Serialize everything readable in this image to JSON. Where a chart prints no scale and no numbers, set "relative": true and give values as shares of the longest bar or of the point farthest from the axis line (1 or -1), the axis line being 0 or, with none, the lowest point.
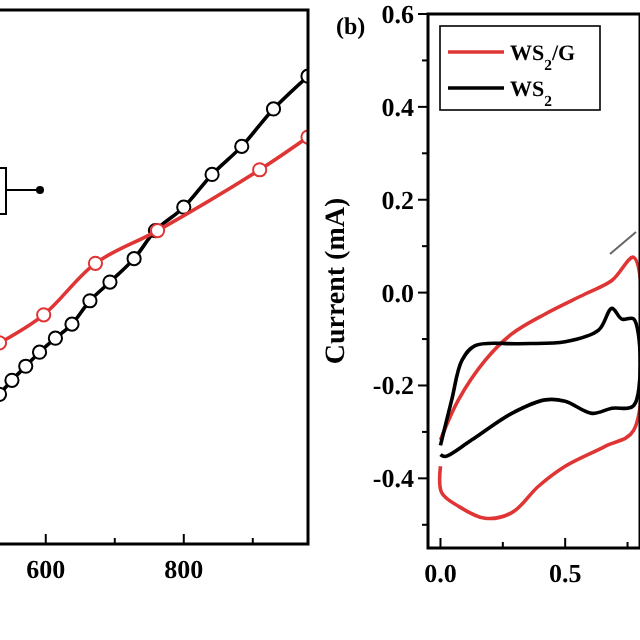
{
  "chart_data": [
    {
      "type": "line",
      "relative": true,
      "marker": "circle",
      "xlim": [
        525,
        980
      ],
      "xticks": [
        600,
        {
          "value": 700,
          "label": null
        },
        800,
        {
          "value": 900,
          "label": null
        }
      ],
      "series": [
        {
          "color": "#000000",
          "x": [
            533,
            551,
            571,
            591,
            614,
            638,
            664,
            693,
            728,
            759,
            800,
            841,
            884,
            930,
            980
          ],
          "values": [
            0.32,
            0.35,
            0.38,
            0.41,
            0.44,
            0.47,
            0.52,
            0.56,
            0.61,
            0.67,
            0.72,
            0.79,
            0.85,
            0.93,
            1
          ]
        },
        {
          "color": "#e03535",
          "x": [
            533,
            597,
            672,
            762,
            910,
            980
          ],
          "values": [
            0.43,
            0.49,
            0.6,
            0.67,
            0.8,
            0.87
          ]
        }
      ]
    },
    {
      "type": "line",
      "title": "(b)",
      "ylabel": "Current (mA)",
      "xlim": [
        -0.05,
        0.8
      ],
      "ylim": [
        -0.55,
        0.6
      ],
      "legend": "top left",
      "xticks": [
        {
          "value": 0,
          "label": "0.0"
        },
        {
          "value": 0.25,
          "label": null
        },
        0.5,
        {
          "value": 0.75,
          "label": null
        }
      ],
      "yticks": [
        -0.4,
        {
          "value": -0.5,
          "label": null
        },
        {
          "value": -0.3,
          "label": null
        },
        -0.2,
        {
          "value": -0.1,
          "label": null
        },
        {
          "value": 0,
          "label": "0.0"
        },
        {
          "value": 0.1,
          "label": null
        },
        0.2,
        {
          "value": 0.3,
          "label": null
        },
        0.4,
        {
          "value": 0.5,
          "label": null
        },
        0.6
      ],
      "series": [
        {
          "name": "WS$_{2}$/G",
          "color": "#e03535",
          "x": [
            0,
            0.072,
            0.179,
            0.286,
            0.42,
            0.58,
            0.687,
            0.775,
            0.775,
            0.66,
            0.5,
            0.393,
            0.286,
            0.179,
            0.072,
            0.005,
            0
          ],
          "values": [
            -0.317,
            -0.231,
            -0.146,
            -0.089,
            -0.046,
            -0.003,
            0.026,
            0.076,
            -0.296,
            -0.331,
            -0.374,
            -0.417,
            -0.474,
            -0.486,
            -0.46,
            -0.431,
            -0.374
          ]
        },
        {
          "name": "WS$_{2}$",
          "color": "#000000",
          "x": [
            0,
            0.045,
            0.086,
            0.139,
            0.313,
            0.5,
            0.634,
            0.687,
            0.727,
            0.775,
            0.775,
            0.687,
            0.607,
            0.5,
            0.42,
            0.286,
            0.126,
            0.019,
            0
          ],
          "values": [
            -0.329,
            -0.231,
            -0.146,
            -0.114,
            -0.11,
            -0.106,
            -0.081,
            -0.034,
            -0.057,
            -0.057,
            -0.243,
            -0.249,
            -0.26,
            -0.234,
            -0.231,
            -0.26,
            -0.317,
            -0.353,
            -0.349
          ]
        }
      ]
    }
  ]
}
